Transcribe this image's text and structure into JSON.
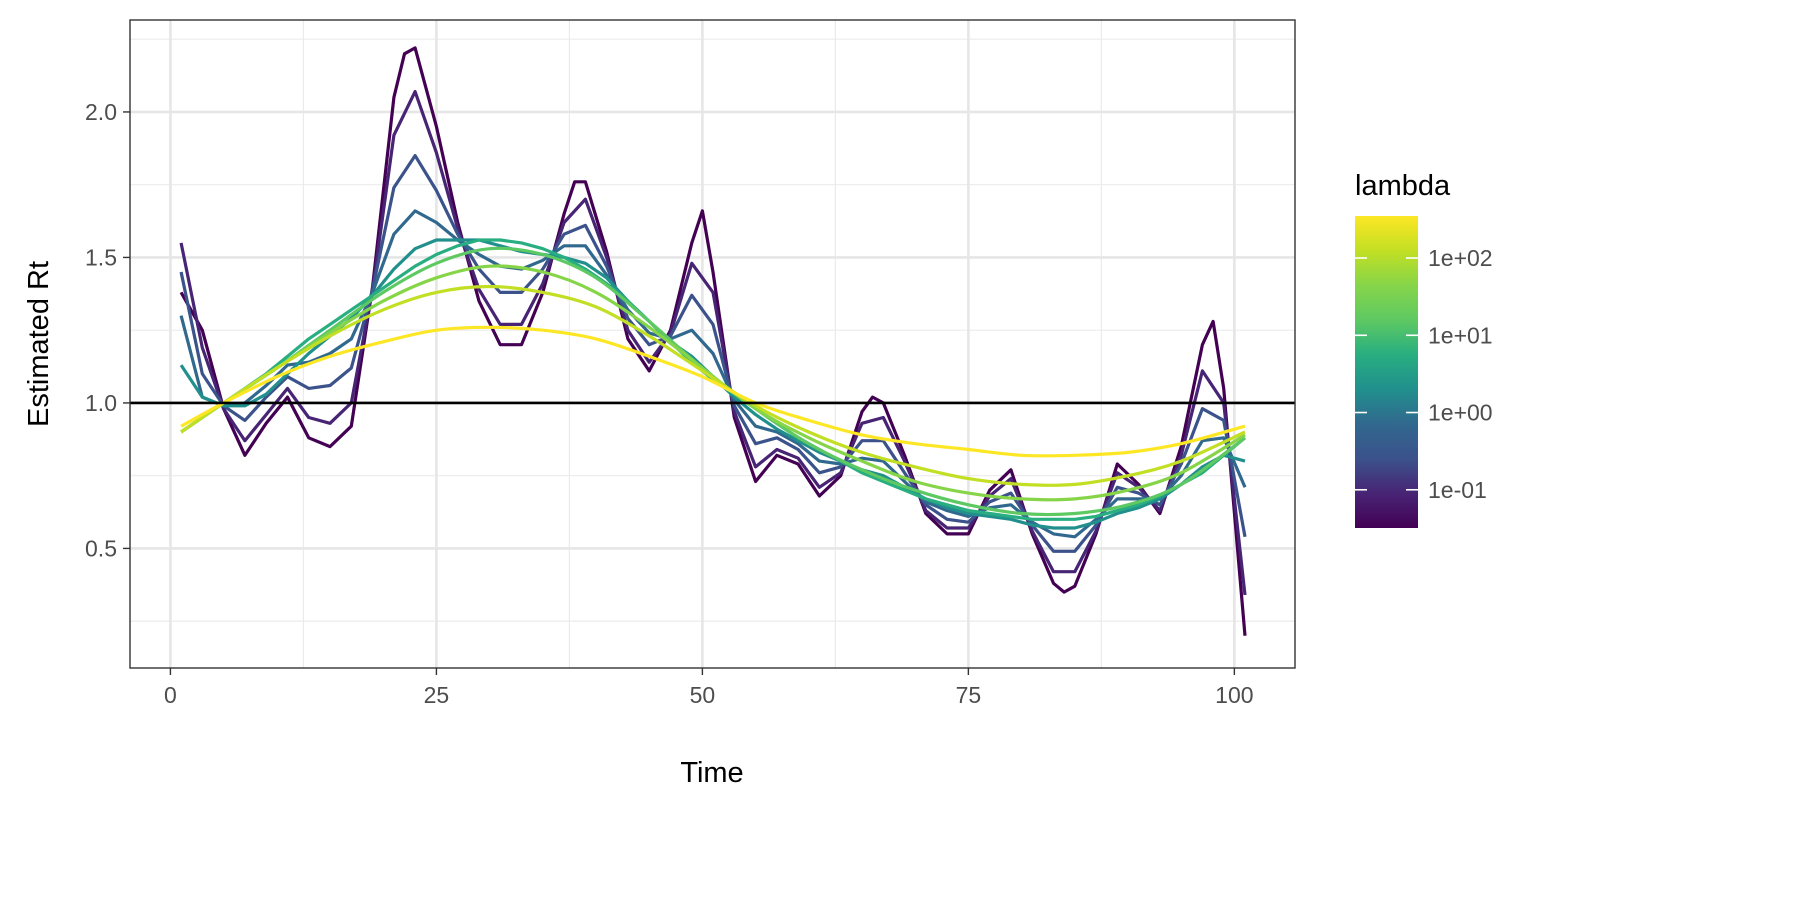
{
  "chart_data": {
    "type": "line",
    "title": "",
    "xlabel": "Time",
    "ylabel": "Estimated Rt",
    "xlim": [
      -3.8,
      105.7
    ],
    "ylim": [
      0.089,
      2.316
    ],
    "x_ticks": [
      0,
      25,
      50,
      75,
      100
    ],
    "x_tick_labels": [
      "0",
      "25",
      "50",
      "75",
      "100"
    ],
    "y_ticks": [
      0.5,
      1.0,
      1.5,
      2.0
    ],
    "y_tick_labels": [
      "0.5",
      "1.0",
      "1.5",
      "2.0"
    ],
    "grid": true,
    "reference_line": {
      "y": 1.0,
      "color": "#000000"
    },
    "legend": {
      "title": "lambda",
      "placement": "right",
      "type": "colorbar",
      "scale": "log",
      "range": [
        0.032,
        350
      ],
      "ticks": [
        0.1,
        1,
        10,
        100
      ],
      "tick_labels": [
        "1e-01",
        "1e+00",
        "1e+01",
        "1e+02"
      ],
      "colors": [
        "#440154",
        "#482475",
        "#3b528b",
        "#31688e",
        "#21908d",
        "#28ae80",
        "#5ec962",
        "#86d549",
        "#c2df23",
        "#fde725"
      ]
    },
    "series": [
      {
        "lambda": 0.03,
        "color": "#440154",
        "x": [
          1,
          3,
          5,
          7,
          9,
          11,
          13,
          15,
          17,
          19,
          21,
          22,
          23,
          25,
          27,
          29,
          31,
          33,
          35,
          37,
          38,
          39,
          41,
          43,
          45,
          47,
          49,
          50,
          51,
          53,
          55,
          57,
          59,
          61,
          63,
          65,
          66,
          67,
          69,
          71,
          73,
          75,
          77,
          79,
          81,
          83,
          84,
          85,
          87,
          89,
          91,
          93,
          95,
          97,
          98,
          99,
          101
        ],
        "y": [
          1.38,
          1.25,
          0.98,
          0.82,
          0.93,
          1.02,
          0.88,
          0.85,
          0.92,
          1.4,
          2.05,
          2.2,
          2.22,
          1.95,
          1.62,
          1.35,
          1.2,
          1.2,
          1.38,
          1.65,
          1.76,
          1.76,
          1.52,
          1.22,
          1.11,
          1.25,
          1.55,
          1.66,
          1.45,
          0.95,
          0.73,
          0.82,
          0.79,
          0.68,
          0.75,
          0.97,
          1.02,
          1.0,
          0.82,
          0.62,
          0.55,
          0.55,
          0.7,
          0.77,
          0.55,
          0.38,
          0.35,
          0.37,
          0.55,
          0.79,
          0.72,
          0.62,
          0.85,
          1.2,
          1.28,
          1.05,
          0.2
        ]
      },
      {
        "lambda": 0.1,
        "color": "#482475",
        "x": [
          1,
          3,
          5,
          7,
          9,
          11,
          13,
          15,
          17,
          19,
          21,
          23,
          25,
          27,
          29,
          31,
          33,
          35,
          37,
          39,
          41,
          43,
          45,
          47,
          49,
          51,
          53,
          55,
          57,
          59,
          61,
          63,
          65,
          67,
          69,
          71,
          73,
          75,
          77,
          79,
          81,
          83,
          85,
          87,
          89,
          91,
          93,
          95,
          97,
          99,
          101
        ],
        "y": [
          1.55,
          1.19,
          0.98,
          0.87,
          0.96,
          1.05,
          0.95,
          0.93,
          1.0,
          1.39,
          1.92,
          2.07,
          1.86,
          1.6,
          1.39,
          1.27,
          1.27,
          1.41,
          1.62,
          1.7,
          1.5,
          1.25,
          1.14,
          1.24,
          1.48,
          1.38,
          0.97,
          0.78,
          0.84,
          0.81,
          0.71,
          0.76,
          0.93,
          0.95,
          0.8,
          0.63,
          0.57,
          0.57,
          0.68,
          0.74,
          0.56,
          0.42,
          0.42,
          0.56,
          0.76,
          0.71,
          0.63,
          0.82,
          1.11,
          1.0,
          0.34
        ]
      },
      {
        "lambda": 0.3,
        "color": "#3b528b",
        "x": [
          1,
          3,
          5,
          7,
          9,
          11,
          13,
          15,
          17,
          19,
          21,
          23,
          25,
          27,
          29,
          31,
          33,
          35,
          37,
          39,
          41,
          43,
          45,
          47,
          49,
          51,
          53,
          55,
          57,
          59,
          61,
          63,
          65,
          67,
          69,
          71,
          73,
          75,
          77,
          79,
          81,
          83,
          85,
          87,
          89,
          91,
          93,
          95,
          97,
          99,
          101
        ],
        "y": [
          1.45,
          1.1,
          0.99,
          0.94,
          1.02,
          1.09,
          1.05,
          1.06,
          1.12,
          1.39,
          1.74,
          1.85,
          1.73,
          1.58,
          1.46,
          1.38,
          1.38,
          1.46,
          1.58,
          1.61,
          1.47,
          1.29,
          1.2,
          1.23,
          1.37,
          1.27,
          0.99,
          0.86,
          0.88,
          0.84,
          0.76,
          0.78,
          0.87,
          0.87,
          0.76,
          0.65,
          0.6,
          0.59,
          0.66,
          0.69,
          0.58,
          0.49,
          0.49,
          0.58,
          0.71,
          0.69,
          0.65,
          0.79,
          0.98,
          0.94,
          0.54
        ]
      },
      {
        "lambda": 1,
        "color": "#31688e",
        "x": [
          1,
          3,
          5,
          7,
          9,
          11,
          13,
          15,
          17,
          19,
          21,
          23,
          25,
          27,
          29,
          31,
          33,
          35,
          37,
          39,
          41,
          43,
          45,
          47,
          49,
          51,
          53,
          55,
          57,
          59,
          61,
          63,
          65,
          67,
          69,
          71,
          73,
          75,
          77,
          79,
          81,
          83,
          85,
          87,
          89,
          91,
          93,
          95,
          97,
          99,
          101
        ],
        "y": [
          1.3,
          1.02,
          0.99,
          1.0,
          1.06,
          1.13,
          1.14,
          1.17,
          1.22,
          1.38,
          1.58,
          1.66,
          1.62,
          1.56,
          1.51,
          1.47,
          1.46,
          1.49,
          1.54,
          1.54,
          1.44,
          1.32,
          1.24,
          1.22,
          1.25,
          1.17,
          1.01,
          0.92,
          0.9,
          0.86,
          0.8,
          0.79,
          0.81,
          0.8,
          0.73,
          0.66,
          0.63,
          0.61,
          0.64,
          0.65,
          0.59,
          0.55,
          0.54,
          0.6,
          0.67,
          0.67,
          0.67,
          0.75,
          0.87,
          0.88,
          0.71
        ]
      },
      {
        "lambda": 3,
        "color": "#21908d",
        "x": [
          1,
          3,
          5,
          7,
          9,
          11,
          13,
          15,
          17,
          19,
          21,
          23,
          25,
          27,
          29,
          31,
          33,
          35,
          37,
          39,
          41,
          43,
          45,
          47,
          49,
          51,
          53,
          55,
          57,
          59,
          61,
          63,
          65,
          67,
          69,
          71,
          73,
          75,
          77,
          79,
          81,
          83,
          85,
          87,
          89,
          91,
          93,
          95,
          97,
          99,
          101
        ],
        "y": [
          1.13,
          1.02,
          0.99,
          0.99,
          1.03,
          1.1,
          1.17,
          1.23,
          1.29,
          1.37,
          1.46,
          1.53,
          1.56,
          1.56,
          1.56,
          1.54,
          1.52,
          1.51,
          1.5,
          1.48,
          1.43,
          1.35,
          1.28,
          1.21,
          1.16,
          1.09,
          1.02,
          0.96,
          0.91,
          0.87,
          0.83,
          0.8,
          0.77,
          0.75,
          0.71,
          0.67,
          0.64,
          0.62,
          0.61,
          0.6,
          0.58,
          0.57,
          0.57,
          0.59,
          0.62,
          0.64,
          0.67,
          0.72,
          0.78,
          0.82,
          0.8
        ]
      },
      {
        "lambda": 10,
        "color": "#28ae80",
        "x": [
          1,
          3,
          5,
          7,
          9,
          11,
          13,
          15,
          17,
          19,
          21,
          23,
          25,
          27,
          29,
          31,
          33,
          35,
          37,
          39,
          41,
          43,
          45,
          47,
          49,
          51,
          53,
          55,
          57,
          59,
          61,
          63,
          65,
          67,
          69,
          71,
          73,
          75,
          77,
          79,
          81,
          83,
          85,
          87,
          89,
          91,
          93,
          95,
          97,
          99,
          101
        ],
        "y": [
          0.9,
          0.95,
          1.0,
          1.05,
          1.1,
          1.16,
          1.22,
          1.27,
          1.32,
          1.37,
          1.42,
          1.47,
          1.51,
          1.54,
          1.56,
          1.56,
          1.55,
          1.53,
          1.5,
          1.46,
          1.41,
          1.35,
          1.28,
          1.21,
          1.14,
          1.08,
          1.03,
          0.98,
          0.93,
          0.88,
          0.84,
          0.8,
          0.76,
          0.73,
          0.7,
          0.67,
          0.65,
          0.63,
          0.62,
          0.61,
          0.6,
          0.6,
          0.6,
          0.61,
          0.63,
          0.65,
          0.68,
          0.72,
          0.76,
          0.82,
          0.88
        ]
      },
      {
        "lambda": 30,
        "color": "#5ec962",
        "x": [
          1,
          5,
          10,
          15,
          20,
          25,
          30,
          35,
          40,
          45,
          50,
          55,
          60,
          65,
          70,
          75,
          80,
          85,
          90,
          95,
          101
        ],
        "y": [
          0.9,
          1.0,
          1.12,
          1.25,
          1.38,
          1.48,
          1.53,
          1.51,
          1.43,
          1.28,
          1.12,
          0.98,
          0.86,
          0.77,
          0.7,
          0.65,
          0.62,
          0.62,
          0.65,
          0.72,
          0.88
        ]
      },
      {
        "lambda": 60,
        "color": "#86d549",
        "x": [
          1,
          5,
          10,
          15,
          20,
          25,
          30,
          35,
          40,
          45,
          50,
          55,
          60,
          65,
          70,
          75,
          80,
          85,
          90,
          95,
          101
        ],
        "y": [
          0.9,
          1.0,
          1.12,
          1.24,
          1.35,
          1.43,
          1.47,
          1.45,
          1.38,
          1.26,
          1.12,
          0.98,
          0.88,
          0.8,
          0.73,
          0.69,
          0.67,
          0.67,
          0.7,
          0.76,
          0.89
        ]
      },
      {
        "lambda": 150,
        "color": "#c2df23",
        "x": [
          1,
          5,
          10,
          15,
          20,
          25,
          30,
          35,
          40,
          45,
          50,
          55,
          60,
          65,
          70,
          75,
          80,
          85,
          90,
          95,
          101
        ],
        "y": [
          0.9,
          1.0,
          1.12,
          1.23,
          1.32,
          1.38,
          1.4,
          1.38,
          1.33,
          1.23,
          1.11,
          0.99,
          0.9,
          0.83,
          0.78,
          0.74,
          0.72,
          0.72,
          0.75,
          0.8,
          0.9
        ]
      },
      {
        "lambda": 350,
        "color": "#fde725",
        "x": [
          1,
          5,
          10,
          15,
          20,
          25,
          30,
          35,
          40,
          45,
          50,
          55,
          60,
          65,
          70,
          75,
          80,
          85,
          90,
          95,
          101
        ],
        "y": [
          0.92,
          1.0,
          1.09,
          1.16,
          1.21,
          1.25,
          1.26,
          1.25,
          1.22,
          1.16,
          1.09,
          1.0,
          0.94,
          0.89,
          0.86,
          0.84,
          0.82,
          0.82,
          0.83,
          0.86,
          0.92
        ]
      }
    ]
  }
}
